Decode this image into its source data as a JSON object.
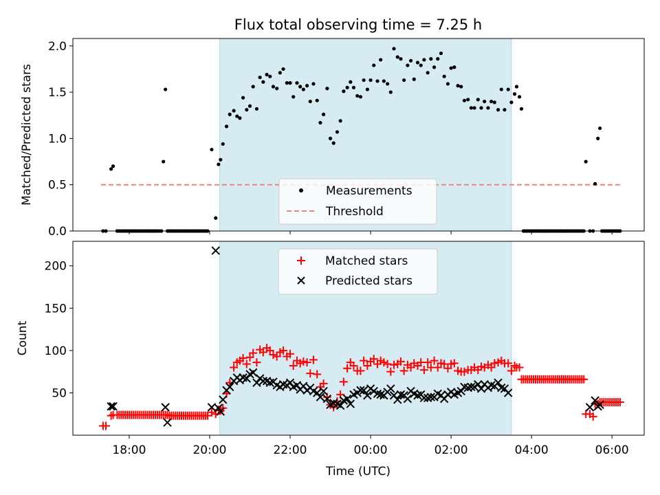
{
  "chart_data": [
    {
      "type": "scatter",
      "title": "Flux total observing time = 7.25 h",
      "ylabel": "Matched/Predicted stars",
      "xlabel": "",
      "xlim": [
        16.6,
        30.8
      ],
      "ylim": [
        0,
        2.08
      ],
      "yticks": [
        0.0,
        0.5,
        1.0,
        1.5,
        2.0
      ],
      "ytick_labels": [
        "0.0",
        "0.5",
        "1.0",
        "1.5",
        "2.0"
      ],
      "xticks": [
        18,
        20,
        22,
        24,
        26,
        28,
        30
      ],
      "grid": false,
      "legend_position": "center-bottom",
      "shaded_interval": [
        20.25,
        27.5
      ],
      "shade_color": "#add8e6",
      "threshold": {
        "name": "Threshold",
        "y": 0.5,
        "x_range": [
          17.3,
          30.25
        ],
        "color": "#f08080",
        "style": "dashed"
      },
      "series": [
        {
          "name": "Measurements",
          "color": "#000000",
          "marker": "dot",
          "x": [
            17.35,
            17.42,
            17.55,
            17.6,
            17.7,
            17.75,
            17.8,
            17.85,
            17.9,
            17.95,
            18.0,
            18.05,
            18.1,
            18.15,
            18.2,
            18.25,
            18.3,
            18.35,
            18.4,
            18.45,
            18.5,
            18.55,
            18.6,
            18.65,
            18.7,
            18.75,
            18.8,
            18.85,
            18.9,
            18.95,
            19.0,
            19.05,
            19.1,
            19.15,
            19.2,
            19.25,
            19.3,
            19.35,
            19.4,
            19.45,
            19.5,
            19.55,
            19.6,
            19.65,
            19.7,
            19.75,
            19.8,
            19.85,
            19.9,
            19.95,
            20.05,
            20.15,
            20.22,
            20.27,
            20.33,
            20.42,
            20.5,
            20.6,
            20.68,
            20.75,
            20.83,
            20.92,
            21.0,
            21.08,
            21.17,
            21.25,
            21.33,
            21.42,
            21.5,
            21.58,
            21.67,
            21.75,
            21.83,
            21.92,
            22.0,
            22.08,
            22.17,
            22.25,
            22.33,
            22.42,
            22.5,
            22.58,
            22.67,
            22.75,
            22.83,
            22.92,
            23.0,
            23.08,
            23.17,
            23.25,
            23.33,
            23.42,
            23.5,
            23.58,
            23.67,
            23.75,
            23.83,
            23.92,
            24.0,
            24.08,
            24.17,
            24.25,
            24.33,
            24.42,
            24.5,
            24.58,
            24.67,
            24.75,
            24.83,
            24.92,
            25.0,
            25.08,
            25.17,
            25.25,
            25.33,
            25.42,
            25.5,
            25.58,
            25.67,
            25.75,
            25.83,
            25.92,
            26.0,
            26.08,
            26.17,
            26.25,
            26.33,
            26.42,
            26.5,
            26.58,
            26.67,
            26.75,
            26.83,
            26.92,
            27.0,
            27.08,
            27.17,
            27.25,
            27.33,
            27.42,
            27.5,
            27.58,
            27.63,
            27.7,
            27.75,
            27.8,
            27.85,
            27.9,
            27.95,
            28.0,
            28.05,
            28.1,
            28.15,
            28.2,
            28.25,
            28.3,
            28.35,
            28.4,
            28.45,
            28.5,
            28.55,
            28.6,
            28.65,
            28.7,
            28.75,
            28.8,
            28.85,
            28.9,
            28.95,
            29.0,
            29.05,
            29.1,
            29.15,
            29.2,
            29.25,
            29.3,
            29.35,
            29.45,
            29.53,
            29.58,
            29.65,
            29.7,
            29.75,
            29.8,
            29.85,
            29.9,
            29.95,
            30.0,
            30.05,
            30.1,
            30.15,
            30.2
          ],
          "y": [
            0,
            0,
            0.67,
            0.7,
            0,
            0,
            0,
            0,
            0,
            0,
            0,
            0,
            0,
            0,
            0,
            0,
            0,
            0,
            0,
            0,
            0,
            0,
            0,
            0,
            0,
            0,
            0,
            0.75,
            1.53,
            0,
            0,
            0,
            0,
            0,
            0,
            0,
            0,
            0,
            0,
            0,
            0,
            0,
            0,
            0,
            0,
            0,
            0,
            0,
            0,
            0,
            0.88,
            0.14,
            0.72,
            0.77,
            0.94,
            1.13,
            1.26,
            1.3,
            1.24,
            1.22,
            1.44,
            1.31,
            1.35,
            1.56,
            1.32,
            1.66,
            1.61,
            1.69,
            1.67,
            1.56,
            1.54,
            1.71,
            1.75,
            1.6,
            1.6,
            1.45,
            1.6,
            1.56,
            1.53,
            1.57,
            1.4,
            1.59,
            1.41,
            1.17,
            1.26,
            1.54,
            1.0,
            0.95,
            1.07,
            1.19,
            1.51,
            1.55,
            1.61,
            1.55,
            1.46,
            1.45,
            1.63,
            1.53,
            1.63,
            1.79,
            1.62,
            1.85,
            1.62,
            1.59,
            1.5,
            1.97,
            1.88,
            1.86,
            1.63,
            1.79,
            1.84,
            1.64,
            1.82,
            1.79,
            1.85,
            1.71,
            1.86,
            1.77,
            1.86,
            1.92,
            1.67,
            1.59,
            1.76,
            1.77,
            1.57,
            1.56,
            1.41,
            1.42,
            1.33,
            1.33,
            1.42,
            1.33,
            1.4,
            1.33,
            1.4,
            1.39,
            1.31,
            1.53,
            1.31,
            1.53,
            1.39,
            1.48,
            1.56,
            1.45,
            1.32,
            0,
            0,
            0,
            0,
            0,
            0,
            0,
            0,
            0,
            0,
            0,
            0,
            0,
            0,
            0,
            0,
            0,
            0,
            0,
            0,
            0,
            0,
            0,
            0,
            0,
            0,
            0,
            0,
            0,
            0,
            0,
            0.75,
            0,
            0,
            0.51,
            1.0,
            1.11,
            0,
            0,
            0,
            0,
            0,
            0,
            0,
            0,
            0,
            0
          ]
        }
      ]
    },
    {
      "type": "scatter",
      "title": "",
      "xlabel": "Time (UTC)",
      "ylabel": "Count",
      "xlim": [
        16.6,
        30.8
      ],
      "ylim": [
        0,
        229
      ],
      "yticks": [
        50,
        100,
        150,
        200
      ],
      "ytick_labels": [
        "50",
        "100",
        "150",
        "200"
      ],
      "xticks": [
        18,
        20,
        22,
        24,
        26,
        28,
        30
      ],
      "xtick_labels": [
        "18:00",
        "20:00",
        "22:00",
        "00:00",
        "02:00",
        "04:00",
        "06:00"
      ],
      "grid": false,
      "legend_position": "top-center",
      "shaded_interval": [
        20.25,
        27.5
      ],
      "shade_color": "#add8e6",
      "series": [
        {
          "name": "Matched stars",
          "color": "#ff0000",
          "marker": "plus",
          "x": [
            17.35,
            17.42,
            17.55,
            17.6,
            17.7,
            17.75,
            17.8,
            17.85,
            17.9,
            17.95,
            18.0,
            18.05,
            18.1,
            18.15,
            18.2,
            18.25,
            18.3,
            18.35,
            18.4,
            18.45,
            18.5,
            18.55,
            18.6,
            18.65,
            18.7,
            18.75,
            18.8,
            18.85,
            18.9,
            18.95,
            19.0,
            19.05,
            19.1,
            19.15,
            19.2,
            19.25,
            19.3,
            19.35,
            19.4,
            19.45,
            19.5,
            19.55,
            19.6,
            19.65,
            19.7,
            19.75,
            19.8,
            19.85,
            19.9,
            19.95,
            20.05,
            20.15,
            20.22,
            20.27,
            20.33,
            20.42,
            20.5,
            20.6,
            20.68,
            20.75,
            20.83,
            20.92,
            21.0,
            21.08,
            21.17,
            21.25,
            21.33,
            21.42,
            21.5,
            21.58,
            21.67,
            21.75,
            21.83,
            21.92,
            22.0,
            22.08,
            22.17,
            22.25,
            22.33,
            22.42,
            22.5,
            22.58,
            22.67,
            22.75,
            22.83,
            22.92,
            23.0,
            23.08,
            23.17,
            23.25,
            23.33,
            23.42,
            23.5,
            23.58,
            23.67,
            23.75,
            23.83,
            23.92,
            24.0,
            24.08,
            24.17,
            24.25,
            24.33,
            24.42,
            24.5,
            24.58,
            24.67,
            24.75,
            24.83,
            24.92,
            25.0,
            25.08,
            25.17,
            25.25,
            25.33,
            25.42,
            25.5,
            25.58,
            25.67,
            25.75,
            25.83,
            25.92,
            26.0,
            26.08,
            26.17,
            26.25,
            26.33,
            26.42,
            26.5,
            26.58,
            26.67,
            26.75,
            26.83,
            26.92,
            27.0,
            27.08,
            27.17,
            27.25,
            27.33,
            27.42,
            27.5,
            27.58,
            27.63,
            27.7,
            27.75,
            27.8,
            27.85,
            27.9,
            27.95,
            28.0,
            28.05,
            28.1,
            28.15,
            28.2,
            28.25,
            28.3,
            28.35,
            28.4,
            28.45,
            28.5,
            28.55,
            28.6,
            28.65,
            28.7,
            28.75,
            28.8,
            28.85,
            28.9,
            28.95,
            29.0,
            29.05,
            29.1,
            29.15,
            29.2,
            29.25,
            29.3,
            29.35,
            29.45,
            29.53,
            29.58,
            29.65,
            29.7,
            29.75,
            29.8,
            29.85,
            29.9,
            29.95,
            30.0,
            30.05,
            30.1,
            30.15,
            30.2
          ],
          "y": [
            11,
            11,
            23,
            24,
            24,
            24,
            24,
            24,
            24,
            24,
            24,
            24,
            24,
            24,
            24,
            24,
            24,
            24,
            24,
            24,
            24,
            24,
            24,
            24,
            24,
            24,
            24,
            24,
            24,
            24,
            23,
            23,
            23,
            23,
            23,
            23,
            23,
            23,
            23,
            23,
            23,
            23,
            23,
            23,
            23,
            23,
            23,
            23,
            23,
            23,
            27,
            25,
            30,
            29,
            32,
            49,
            62,
            80,
            86,
            88,
            91,
            84,
            92,
            97,
            86,
            101,
            98,
            103,
            100,
            95,
            93,
            98,
            100,
            93,
            96,
            82,
            88,
            85,
            87,
            86,
            73,
            89,
            72,
            57,
            61,
            45,
            36,
            33,
            40,
            48,
            63,
            79,
            86,
            82,
            76,
            76,
            88,
            82,
            87,
            90,
            84,
            88,
            86,
            84,
            75,
            83,
            84,
            87,
            76,
            83,
            80,
            85,
            82,
            86,
            77,
            86,
            80,
            88,
            80,
            85,
            84,
            79,
            84,
            85,
            76,
            75,
            75,
            77,
            77,
            80,
            77,
            81,
            80,
            83,
            80,
            85,
            86,
            88,
            85,
            85,
            76,
            82,
            80,
            80,
            66,
            66,
            66,
            66,
            66,
            66,
            66,
            66,
            66,
            66,
            66,
            66,
            66,
            66,
            66,
            66,
            66,
            66,
            66,
            66,
            66,
            66,
            66,
            66,
            66,
            66,
            66,
            66,
            66,
            66,
            66,
            66,
            25,
            25,
            22,
            37,
            37,
            39,
            39,
            39,
            39,
            39,
            39,
            39,
            39,
            39,
            39,
            39
          ]
        },
        {
          "name": "Predicted stars",
          "color": "#000000",
          "marker": "x",
          "x": [
            17.55,
            17.6,
            18.9,
            18.95,
            20.05,
            20.15,
            20.22,
            20.27,
            20.33,
            20.42,
            20.5,
            20.6,
            20.68,
            20.75,
            20.83,
            20.92,
            21.0,
            21.08,
            21.17,
            21.25,
            21.33,
            21.42,
            21.5,
            21.58,
            21.67,
            21.75,
            21.83,
            21.92,
            22.0,
            22.08,
            22.17,
            22.25,
            22.33,
            22.42,
            22.5,
            22.58,
            22.67,
            22.75,
            22.83,
            22.92,
            23.0,
            23.08,
            23.17,
            23.25,
            23.33,
            23.42,
            23.5,
            23.58,
            23.67,
            23.75,
            23.83,
            23.92,
            24.0,
            24.08,
            24.17,
            24.25,
            24.33,
            24.42,
            24.5,
            24.58,
            24.67,
            24.75,
            24.83,
            24.92,
            25.0,
            25.08,
            25.17,
            25.25,
            25.33,
            25.42,
            25.5,
            25.58,
            25.67,
            25.75,
            25.83,
            25.92,
            26.0,
            26.08,
            26.17,
            26.25,
            26.33,
            26.42,
            26.5,
            26.58,
            26.67,
            26.75,
            26.83,
            26.92,
            27.0,
            27.08,
            27.17,
            27.25,
            27.33,
            27.42,
            29.45,
            29.58,
            29.65,
            29.7
          ],
          "y": [
            34,
            34,
            33,
            15,
            33,
            218,
            32,
            28,
            42,
            53,
            57,
            64,
            68,
            65,
            68,
            67,
            72,
            74,
            62,
            67,
            64,
            64,
            62,
            63,
            59,
            57,
            60,
            59,
            62,
            57,
            59,
            54,
            58,
            53,
            56,
            52,
            50,
            45,
            52,
            43,
            36,
            38,
            37,
            35,
            41,
            43,
            37,
            48,
            50,
            53,
            53,
            47,
            55,
            52,
            49,
            48,
            47,
            51,
            55,
            47,
            42,
            48,
            47,
            43,
            52,
            49,
            47,
            48,
            44,
            44,
            45,
            45,
            49,
            47,
            43,
            48,
            51,
            48,
            50,
            52,
            57,
            56,
            57,
            57,
            60,
            55,
            60,
            56,
            59,
            58,
            62,
            56,
            55,
            50,
            33,
            41,
            34,
            36
          ]
        }
      ]
    }
  ]
}
